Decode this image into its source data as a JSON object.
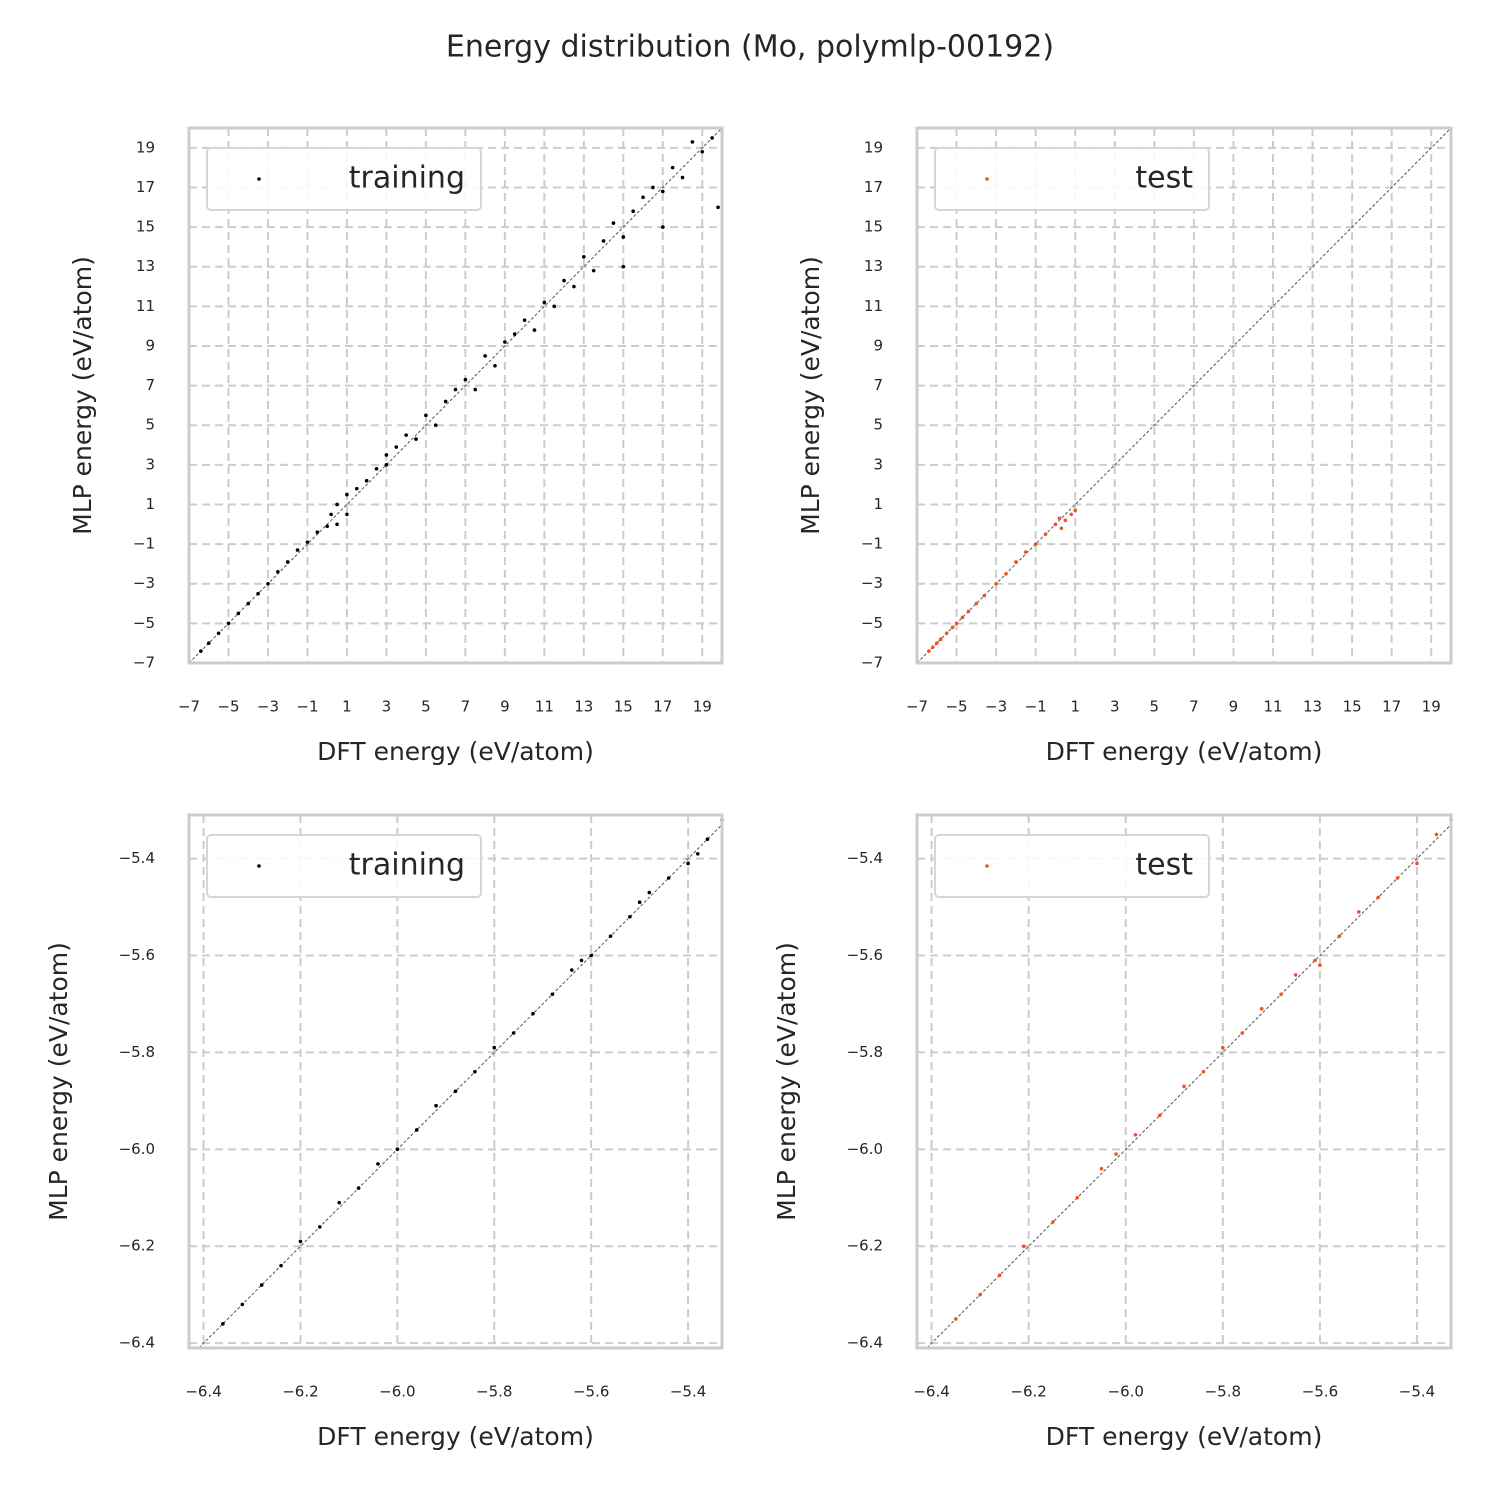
{
  "title": "Energy distribution (Mo, polymlp-00192)",
  "chart_data": [
    {
      "type": "scatter",
      "xlabel": "DFT energy (eV/atom)",
      "ylabel": "MLP energy (eV/atom)",
      "xlim": [
        -7,
        20
      ],
      "ylim": [
        -7,
        20
      ],
      "grid": true,
      "legend": "upper left",
      "xticks": [
        {
          "value": -7,
          "label": "−7"
        },
        {
          "value": -5,
          "label": "−5"
        },
        {
          "value": -3,
          "label": "−3"
        },
        {
          "value": -1,
          "label": "−1"
        },
        1,
        3,
        5,
        7,
        9,
        11,
        13,
        15,
        17,
        19
      ],
      "yticks": [
        {
          "value": -7,
          "label": "−7"
        },
        {
          "value": -5,
          "label": "−5"
        },
        {
          "value": -3,
          "label": "−3"
        },
        {
          "value": -1,
          "label": "−1"
        },
        1,
        3,
        5,
        7,
        9,
        11,
        13,
        15,
        17,
        19
      ],
      "series": [
        {
          "name": "training",
          "color": "#000000",
          "x": [
            -6.4,
            -6.0,
            -5.5,
            -5.0,
            -4.5,
            -4.0,
            -3.5,
            -3.0,
            -2.5,
            -2.0,
            -1.5,
            -1.0,
            -0.5,
            0,
            0.2,
            0.5,
            0.5,
            1,
            1,
            1.5,
            2,
            2.5,
            3,
            3,
            3.5,
            4,
            4.5,
            5,
            5.5,
            6,
            6.5,
            7,
            7.5,
            8,
            8.5,
            9,
            9.5,
            10,
            10.5,
            11,
            11.5,
            12,
            12.5,
            13,
            13.5,
            14,
            14.5,
            15,
            15.5,
            16,
            16.5,
            17,
            17.5,
            18,
            18.5,
            19,
            19.5,
            19.8,
            15,
            17
          ],
          "y": [
            -6.4,
            -6.0,
            -5.5,
            -5.0,
            -4.5,
            -4.0,
            -3.5,
            -3.0,
            -2.4,
            -1.9,
            -1.3,
            -0.9,
            -0.4,
            -0.1,
            0.5,
            0.0,
            1.0,
            0.5,
            1.5,
            1.8,
            2.2,
            2.8,
            3.0,
            3.5,
            3.9,
            4.5,
            4.3,
            5.5,
            5.0,
            6.2,
            6.8,
            7.3,
            6.8,
            8.5,
            8.0,
            9.2,
            9.6,
            10.3,
            9.8,
            11.2,
            11.0,
            12.3,
            12.0,
            13.5,
            12.8,
            14.3,
            15.2,
            14.5,
            15.8,
            16.5,
            17.0,
            16.8,
            18.0,
            17.5,
            19.3,
            18.8,
            19.5,
            16.0,
            13.0,
            15.0
          ]
        }
      ]
    },
    {
      "type": "scatter",
      "xlabel": "DFT energy (eV/atom)",
      "ylabel": "MLP energy (eV/atom)",
      "xlim": [
        -7,
        20
      ],
      "ylim": [
        -7,
        20
      ],
      "grid": true,
      "legend": "upper left",
      "xticks": [
        {
          "value": -7,
          "label": "−7"
        },
        {
          "value": -5,
          "label": "−5"
        },
        {
          "value": -3,
          "label": "−3"
        },
        {
          "value": -1,
          "label": "−1"
        },
        1,
        3,
        5,
        7,
        9,
        11,
        13,
        15,
        17,
        19
      ],
      "yticks": [
        {
          "value": -7,
          "label": "−7"
        },
        {
          "value": -5,
          "label": "−5"
        },
        {
          "value": -3,
          "label": "−3"
        },
        {
          "value": -1,
          "label": "−1"
        },
        1,
        3,
        5,
        7,
        9,
        11,
        13,
        15,
        17,
        19
      ],
      "series": [
        {
          "name": "test",
          "color": "#f4511e",
          "x": [
            -6.4,
            -6.2,
            -6.0,
            -5.8,
            -5.5,
            -5.2,
            -5.0,
            -4.7,
            -4.4,
            -4.0,
            -3.6,
            -3.0,
            -2.5,
            -2.0,
            -1.5,
            -1.0,
            -0.5,
            0,
            0.2,
            0.5,
            0.8,
            1.0,
            0.3
          ],
          "y": [
            -6.4,
            -6.2,
            -6.0,
            -5.8,
            -5.5,
            -5.2,
            -5.0,
            -4.7,
            -4.4,
            -4.0,
            -3.6,
            -3.0,
            -2.5,
            -1.9,
            -1.4,
            -1.0,
            -0.5,
            0,
            0.3,
            0.2,
            0.5,
            0.7,
            -0.2
          ]
        }
      ]
    },
    {
      "type": "scatter",
      "xlabel": "DFT energy (eV/atom)",
      "ylabel": "MLP energy (eV/atom)",
      "xlim": [
        -6.43,
        -5.33
      ],
      "ylim": [
        -6.41,
        -5.31
      ],
      "grid": true,
      "legend": "upper left",
      "xticks": [
        {
          "value": -6.4,
          "label": "−6.4"
        },
        {
          "value": -6.2,
          "label": "−6.2"
        },
        {
          "value": -6.0,
          "label": "−6.0"
        },
        {
          "value": -5.8,
          "label": "−5.8"
        },
        {
          "value": -5.6,
          "label": "−5.6"
        },
        {
          "value": -5.4,
          "label": "−5.4"
        }
      ],
      "yticks": [
        {
          "value": -6.4,
          "label": "−6.4"
        },
        {
          "value": -6.2,
          "label": "−6.2"
        },
        {
          "value": -6.0,
          "label": "−6.0"
        },
        {
          "value": -5.8,
          "label": "−5.8"
        },
        {
          "value": -5.6,
          "label": "−5.6"
        },
        {
          "value": -5.4,
          "label": "−5.4"
        }
      ],
      "series": [
        {
          "name": "training",
          "color": "#000000",
          "x": [
            -6.36,
            -6.32,
            -6.28,
            -6.24,
            -6.2,
            -6.16,
            -6.12,
            -6.08,
            -6.04,
            -6.0,
            -5.96,
            -5.92,
            -5.88,
            -5.84,
            -5.8,
            -5.76,
            -5.72,
            -5.68,
            -5.64,
            -5.6,
            -5.56,
            -5.52,
            -5.48,
            -5.44,
            -5.4,
            -5.36,
            -5.33,
            -5.38,
            -5.5,
            -5.62
          ],
          "y": [
            -6.36,
            -6.32,
            -6.28,
            -6.24,
            -6.19,
            -6.16,
            -6.11,
            -6.08,
            -6.03,
            -6.0,
            -5.96,
            -5.91,
            -5.88,
            -5.84,
            -5.79,
            -5.76,
            -5.72,
            -5.68,
            -5.63,
            -5.6,
            -5.56,
            -5.52,
            -5.47,
            -5.44,
            -5.41,
            -5.36,
            -5.32,
            -5.39,
            -5.49,
            -5.61
          ]
        }
      ]
    },
    {
      "type": "scatter",
      "xlabel": "DFT energy (eV/atom)",
      "ylabel": "MLP energy (eV/atom)",
      "xlim": [
        -6.43,
        -5.33
      ],
      "ylim": [
        -6.41,
        -5.31
      ],
      "grid": true,
      "legend": "upper left",
      "xticks": [
        {
          "value": -6.4,
          "label": "−6.4"
        },
        {
          "value": -6.2,
          "label": "−6.2"
        },
        {
          "value": -6.0,
          "label": "−6.0"
        },
        {
          "value": -5.8,
          "label": "−5.8"
        },
        {
          "value": -5.6,
          "label": "−5.6"
        },
        {
          "value": -5.4,
          "label": "−5.4"
        }
      ],
      "yticks": [
        {
          "value": -6.4,
          "label": "−6.4"
        },
        {
          "value": -6.2,
          "label": "−6.2"
        },
        {
          "value": -6.0,
          "label": "−6.0"
        },
        {
          "value": -5.8,
          "label": "−5.8"
        },
        {
          "value": -5.6,
          "label": "−5.6"
        },
        {
          "value": -5.4,
          "label": "−5.4"
        }
      ],
      "series": [
        {
          "name": "test",
          "color": "#f4511e",
          "x": [
            -6.35,
            -6.3,
            -6.26,
            -6.21,
            -6.15,
            -6.1,
            -6.05,
            -6.02,
            -5.98,
            -5.93,
            -5.88,
            -5.84,
            -5.8,
            -5.76,
            -5.72,
            -5.68,
            -5.65,
            -5.61,
            -5.6,
            -5.56,
            -5.52,
            -5.48,
            -5.44,
            -5.4,
            -5.36,
            -5.33
          ],
          "y": [
            -6.35,
            -6.3,
            -6.26,
            -6.2,
            -6.15,
            -6.1,
            -6.04,
            -6.01,
            -5.97,
            -5.93,
            -5.87,
            -5.84,
            -5.79,
            -5.76,
            -5.71,
            -5.68,
            -5.64,
            -5.61,
            -5.62,
            -5.56,
            -5.51,
            -5.48,
            -5.44,
            -5.41,
            -5.35,
            -5.32
          ]
        }
      ]
    }
  ]
}
